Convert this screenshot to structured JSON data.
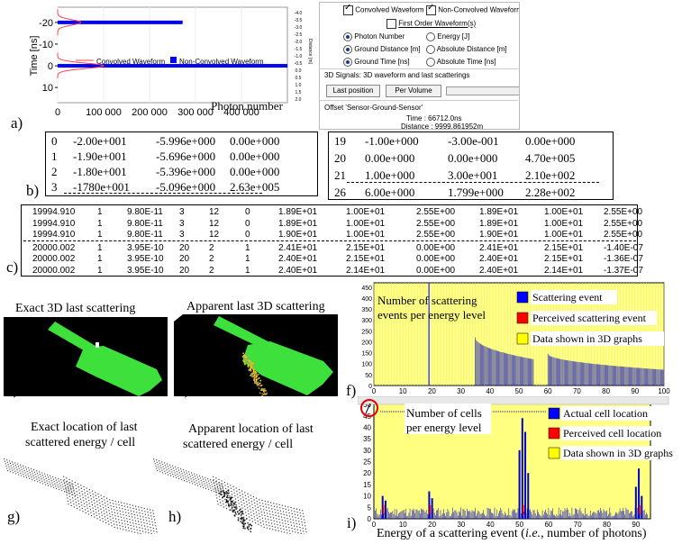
{
  "panel_labels": {
    "a": "a)",
    "b": "b)",
    "c": "c)",
    "d": "d)",
    "e": "e)",
    "f": "f)",
    "g": "g)",
    "h": "h)",
    "i": "i)"
  },
  "chart_data": [
    {
      "type": "line",
      "ylabel": "Time [ns]",
      "xlabel": "Photon number",
      "x_ticks": [
        "0",
        "100 000",
        "200 000",
        "300 000",
        "400 000"
      ],
      "y_ticks": [
        "-20",
        "-10",
        "0",
        "10"
      ],
      "right_ticks": [
        "-4.0",
        "-3.5",
        "-3.0",
        "-2.5",
        "-2.0",
        "-1.5",
        "-1.0",
        "-0.5",
        "0.0",
        "0.5",
        "1.0",
        "1.5",
        "2.0"
      ],
      "right_label": "Distance [m]",
      "xlim": [
        0,
        500000
      ],
      "ylim": [
        -27,
        17
      ],
      "legend": [
        {
          "name": "Convolved Waveform",
          "color": "#ff4444",
          "style": "line"
        },
        {
          "name": "Non-Convolved Waveform",
          "color": "#0000ff",
          "style": "square"
        }
      ],
      "bars": [
        {
          "y": -20,
          "x_end": 272000
        },
        {
          "y": 0,
          "x_end": 500000
        }
      ],
      "convolved_peaks": [
        {
          "center": -20,
          "height": 50000,
          "width": 1.8
        },
        {
          "center": 0,
          "height": 100000,
          "width": 1.8
        }
      ]
    },
    {
      "type": "bar",
      "title": "Number of scattering events per energy level",
      "x_ticks": [
        "0",
        "10",
        "20",
        "30",
        "40",
        "50",
        "60",
        "70",
        "80",
        "90",
        "100"
      ],
      "y_ticks": [
        "0",
        "50",
        "100",
        "150",
        "200",
        "250",
        "300",
        "350",
        "400",
        "450"
      ],
      "xlim": [
        0,
        100
      ],
      "ylim": [
        0,
        470
      ],
      "legend": [
        {
          "name": "Scattering event",
          "color": "#0000ff"
        },
        {
          "name": "Perceived scattering event",
          "color": "#ff0000"
        },
        {
          "name": "Data shown in 3D graphs",
          "color": "#ffff00"
        }
      ],
      "spikes": [
        {
          "x": 19,
          "y": 470
        }
      ],
      "comb_segments": [
        {
          "x_start": 35,
          "x_end": 55,
          "y_start": 220,
          "y_end": 120
        },
        {
          "x_start": 60,
          "x_end": 100,
          "y_start": 145,
          "y_end": 72
        }
      ]
    },
    {
      "type": "bar",
      "title": "Number of cells per energy level",
      "xlabel": "Energy of a scattering event (i.e., number of photons)",
      "x_ticks": [
        "0",
        "10",
        "20",
        "30",
        "40",
        "50",
        "60",
        "70",
        "80",
        "90"
      ],
      "y_ticks": [
        "0",
        "5",
        "10",
        "15",
        "20",
        "25",
        "30",
        "35",
        "40",
        "45",
        "50"
      ],
      "xlim": [
        0,
        95
      ],
      "ylim": [
        0,
        52
      ],
      "legend": [
        {
          "name": "Actual cell location",
          "color": "#0000ff"
        },
        {
          "name": "Perceived cell location",
          "color": "#ff0000"
        },
        {
          "name": "Data shown in 3D graphs",
          "color": "#ffff00"
        }
      ],
      "peaks": [
        {
          "x": 3,
          "y": 10
        },
        {
          "x": 4,
          "y": 8
        },
        {
          "x": 19,
          "y": 12
        },
        {
          "x": 20,
          "y": 9
        },
        {
          "x": 50,
          "y": 30
        },
        {
          "x": 51,
          "y": 44
        },
        {
          "x": 52,
          "y": 38
        },
        {
          "x": 53,
          "y": 20
        },
        {
          "x": 90,
          "y": 14
        },
        {
          "x": 91,
          "y": 22
        },
        {
          "x": 92,
          "y": 10
        }
      ]
    }
  ],
  "controls": {
    "cb_convolved": "Convolved Waveform",
    "cb_nonconvolved": "Non-Convolved Waveform",
    "cb_first_order": "First Order Waveform(s)",
    "r_photon": "Photon Number",
    "r_energy": "Energy [J]",
    "r_ground_dist": "Ground Distance [m]",
    "r_abs_dist": "Absolute Distance [m]",
    "r_ground_time": "Ground Time [ns]",
    "r_abs_time": "Absolute Time [ns]",
    "signals_label": "3D Signals: 3D waveform and last scatterings",
    "btn_last": "Last position",
    "btn_volume": "Per Volume",
    "offset_label": "Offset 'Sensor-Ground-Sensor'",
    "time_text": "Time : 66712.0ns",
    "distance_text": "Distance : 9999.861952m"
  },
  "table_b_left": [
    [
      "0",
      "-2.00e+001",
      "-5.996e+000",
      "0.00e+000"
    ],
    [
      "1",
      "-1.90e+001",
      "-5.696e+000",
      "0.00e+000"
    ],
    [
      "2",
      "-1.80e+001",
      "-5.396e+000",
      "0.00e+000"
    ],
    [
      "3",
      "-1780e+001",
      "-5.096e+000",
      "2.63e+005"
    ]
  ],
  "table_b_right": [
    [
      "19",
      "-1.00e+000",
      "-3.00e-001",
      "0.00e+000"
    ],
    [
      "20",
      "0.00e+000",
      "0.00e+000",
      "4.70e+005"
    ],
    [
      "21",
      "1.00e+000",
      "3.00e+001",
      "2.10e+002"
    ],
    [
      "26",
      "6.00e+000",
      "1.799e+000",
      "2.28e+002"
    ]
  ],
  "table_c": [
    [
      "19994.910",
      "1",
      "9.80E-11",
      "3",
      "12",
      "0",
      "1.89E+01",
      "1.00E+01",
      "2.55E+00",
      "1.89E+01",
      "1.00E+01",
      "2.55E+00"
    ],
    [
      "19994.910",
      "1",
      "9.80E-11",
      "3",
      "12",
      "0",
      "1.89E+01",
      "1.00E+01",
      "2.55E+00",
      "1.89E+01",
      "1.00E+01",
      "2.55E+00"
    ],
    [
      "19994.910",
      "1",
      "9.80E-11",
      "3",
      "12",
      "0",
      "1.90E+01",
      "1.00E+01",
      "2.55E+00",
      "1.90E+01",
      "1.00E+01",
      "2.55E+00"
    ],
    [
      "20000.002",
      "1",
      "3.95E-10",
      "20",
      "2",
      "1",
      "2.41E+01",
      "2.15E+01",
      "0.00E+00",
      "2.41E+01",
      "2.15E+01",
      "-1.40E-07"
    ],
    [
      "20000.002",
      "1",
      "3.95E-10",
      "20",
      "2",
      "1",
      "2.40E+01",
      "2.15E+01",
      "0.00E+00",
      "2.40E+01",
      "2.15E+01",
      "-1.36E-07"
    ],
    [
      "20000.002",
      "1",
      "3.95E-10",
      "20",
      "2",
      "1",
      "2.40E+01",
      "2.14E+01",
      "0.00E+00",
      "2.40E+01",
      "2.14E+01",
      "-1.37E-07"
    ]
  ],
  "captions": {
    "d": "Exact 3D last scattering",
    "e": "Apparent last 3D scattering",
    "g1": "Exact location of last",
    "g2": "scattered energy / cell",
    "h1": "Apparent location of last",
    "h2": "scattered energy / cell"
  },
  "chart_f_title1": "Number of scattering",
  "chart_f_title2": "events per energy level",
  "chart_i_title1": "Number of cells",
  "chart_i_title2": "per energy level",
  "chart_i_xlabel_pre": "Energy of a scattering event (",
  "chart_i_xlabel_ie": "i.e.",
  "chart_i_xlabel_post": ", number of photons)"
}
